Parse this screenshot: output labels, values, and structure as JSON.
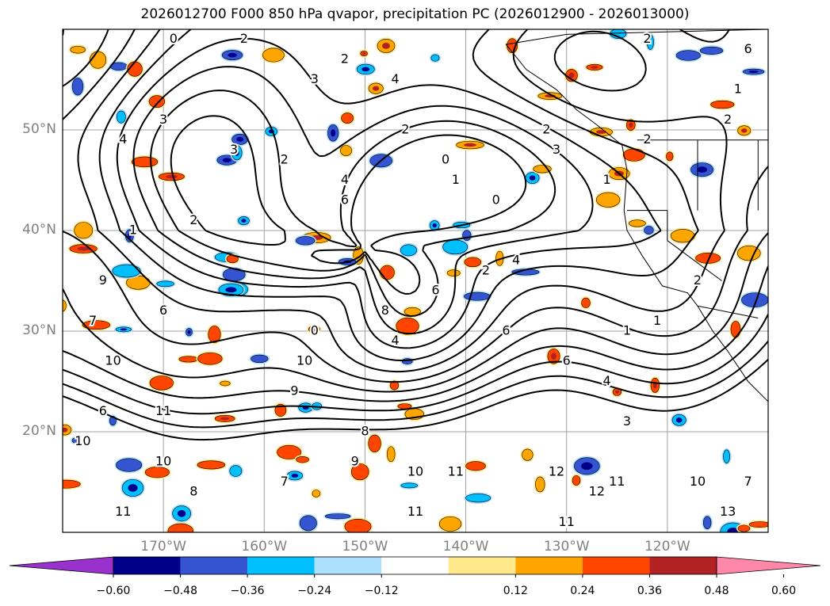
{
  "title": "2026012700 F000 850 hPa qvapor, precipitation PC (2026012900 - 2026013000)",
  "map": {
    "extent": {
      "lon_min": -180,
      "lon_max": -110,
      "lat_min": 10,
      "lat_max": 60
    },
    "lat_ticks": [
      {
        "lat": 50,
        "label": "50°N"
      },
      {
        "lat": 40,
        "label": "40°N"
      },
      {
        "lat": 30,
        "label": "30°N"
      },
      {
        "lat": 20,
        "label": "20°N"
      }
    ],
    "lon_ticks": [
      {
        "lon": -170,
        "label": "170°W"
      },
      {
        "lon": -160,
        "label": "160°W"
      },
      {
        "lon": -150,
        "label": "150°W"
      },
      {
        "lon": -140,
        "label": "140°W"
      },
      {
        "lon": -130,
        "label": "130°W"
      },
      {
        "lon": -120,
        "label": "120°W"
      }
    ],
    "grid_color": "#a0a0a0",
    "contour_labels": [
      {
        "text": "0",
        "lon": -169,
        "lat": 59
      },
      {
        "text": "2",
        "lon": -162,
        "lat": 59
      },
      {
        "text": "2",
        "lon": -152,
        "lat": 57
      },
      {
        "text": "3",
        "lon": -155,
        "lat": 55
      },
      {
        "text": "4",
        "lon": -147,
        "lat": 55
      },
      {
        "text": "3",
        "lon": -170,
        "lat": 51
      },
      {
        "text": "4",
        "lon": -174,
        "lat": 49
      },
      {
        "text": "2",
        "lon": -158,
        "lat": 47
      },
      {
        "text": "3",
        "lon": -163,
        "lat": 48
      },
      {
        "text": "4",
        "lon": -152,
        "lat": 45
      },
      {
        "text": "6",
        "lon": -152,
        "lat": 43
      },
      {
        "text": "2",
        "lon": -146,
        "lat": 50
      },
      {
        "text": "0",
        "lon": -142,
        "lat": 47
      },
      {
        "text": "1",
        "lon": -141,
        "lat": 45
      },
      {
        "text": "0",
        "lon": -137,
        "lat": 43
      },
      {
        "text": "2",
        "lon": -132,
        "lat": 50
      },
      {
        "text": "3",
        "lon": -131,
        "lat": 48
      },
      {
        "text": "1",
        "lon": -126,
        "lat": 45
      },
      {
        "text": "2",
        "lon": -122,
        "lat": 49
      },
      {
        "text": "2",
        "lon": -122,
        "lat": 59
      },
      {
        "text": "6",
        "lon": -112,
        "lat": 58
      },
      {
        "text": "1",
        "lon": -113,
        "lat": 54
      },
      {
        "text": "2",
        "lon": -114,
        "lat": 51
      },
      {
        "text": "9",
        "lon": -176,
        "lat": 35
      },
      {
        "text": "7",
        "lon": -177,
        "lat": 31
      },
      {
        "text": "6",
        "lon": -170,
        "lat": 32
      },
      {
        "text": "10",
        "lon": -175,
        "lat": 27
      },
      {
        "text": "1",
        "lon": -173,
        "lat": 40
      },
      {
        "text": "2",
        "lon": -167,
        "lat": 41
      },
      {
        "text": "0",
        "lon": -155,
        "lat": 30
      },
      {
        "text": "4",
        "lon": -147,
        "lat": 29
      },
      {
        "text": "6",
        "lon": -143,
        "lat": 34
      },
      {
        "text": "8",
        "lon": -148,
        "lat": 32
      },
      {
        "text": "10",
        "lon": -156,
        "lat": 27
      },
      {
        "text": "9",
        "lon": -157,
        "lat": 24
      },
      {
        "text": "2",
        "lon": -138,
        "lat": 36
      },
      {
        "text": "4",
        "lon": -135,
        "lat": 37
      },
      {
        "text": "6",
        "lon": -136,
        "lat": 30
      },
      {
        "text": "6",
        "lon": -130,
        "lat": 27
      },
      {
        "text": "4",
        "lon": -126,
        "lat": 25
      },
      {
        "text": "1",
        "lon": -124,
        "lat": 30
      },
      {
        "text": "1",
        "lon": -121,
        "lat": 31
      },
      {
        "text": "2",
        "lon": -117,
        "lat": 35
      },
      {
        "text": "10",
        "lon": -178,
        "lat": 19
      },
      {
        "text": "6",
        "lon": -176,
        "lat": 22
      },
      {
        "text": "11",
        "lon": -170,
        "lat": 22
      },
      {
        "text": "10",
        "lon": -170,
        "lat": 17
      },
      {
        "text": "8",
        "lon": -150,
        "lat": 20
      },
      {
        "text": "9",
        "lon": -151,
        "lat": 17
      },
      {
        "text": "10",
        "lon": -145,
        "lat": 16
      },
      {
        "text": "11",
        "lon": -141,
        "lat": 16
      },
      {
        "text": "7",
        "lon": -158,
        "lat": 15
      },
      {
        "text": "12",
        "lon": -131,
        "lat": 16
      },
      {
        "text": "12",
        "lon": -127,
        "lat": 14
      },
      {
        "text": "11",
        "lon": -125,
        "lat": 15
      },
      {
        "text": "10",
        "lon": -117,
        "lat": 15
      },
      {
        "text": "13",
        "lon": -114,
        "lat": 12
      },
      {
        "text": "7",
        "lon": -112,
        "lat": 15
      },
      {
        "text": "11",
        "lon": -145,
        "lat": 12
      },
      {
        "text": "11",
        "lon": -130,
        "lat": 11
      },
      {
        "text": "8",
        "lon": -167,
        "lat": 14
      },
      {
        "text": "11",
        "lon": -174,
        "lat": 12
      },
      {
        "text": "3",
        "lon": -124,
        "lat": 21
      }
    ]
  },
  "colorbar": {
    "colors": [
      "#9932CC",
      "#00008B",
      "#3454D1",
      "#00BFFF",
      "#ADE0FA",
      "#FFFFFF",
      "#FFE98A",
      "#FFA500",
      "#FF4500",
      "#B22222",
      "#FF88AA"
    ],
    "ticks": [
      "−0.60",
      "−0.48",
      "−0.36",
      "−0.24",
      "−0.12",
      "0.12",
      "0.24",
      "0.36",
      "0.48",
      "0.60"
    ]
  },
  "icons": {
    "colorbar_left": "triangle-left-extension",
    "colorbar_right": "triangle-right-extension"
  }
}
